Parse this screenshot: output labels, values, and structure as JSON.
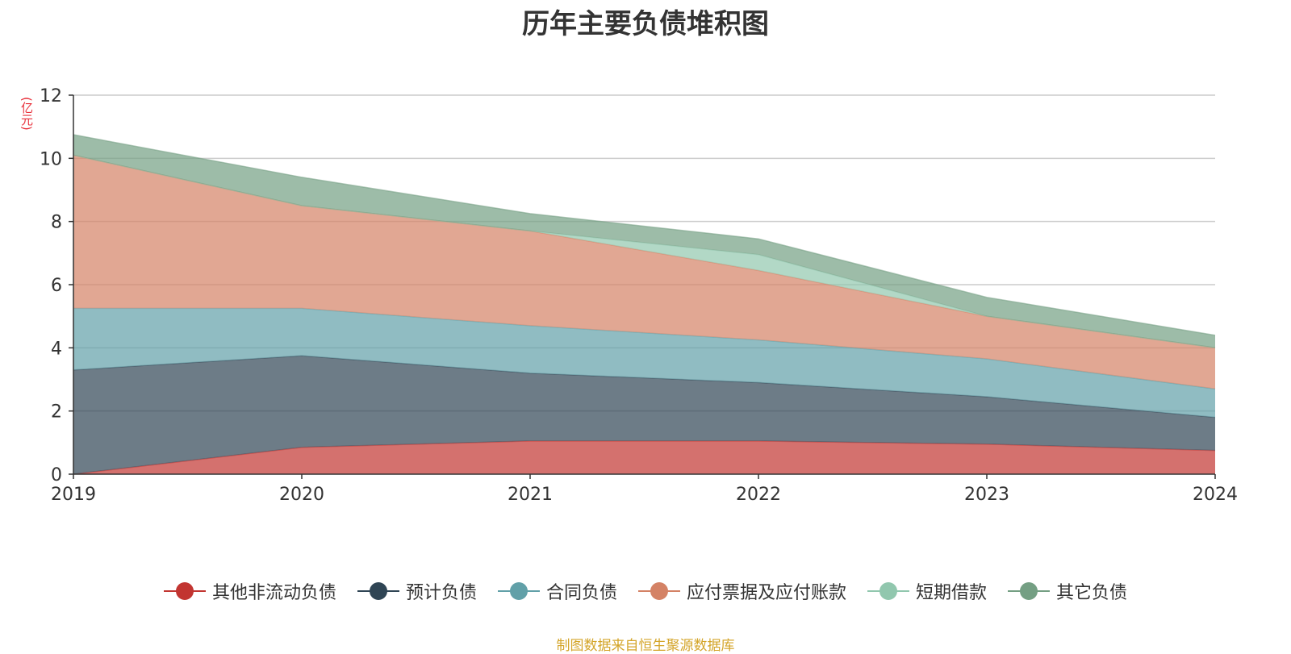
{
  "chart_data": {
    "type": "area",
    "stacked": true,
    "title": "历年主要负债堆积图",
    "unit": "(亿元)",
    "x": [
      "2019",
      "2020",
      "2021",
      "2022",
      "2023",
      "2024"
    ],
    "ylim": [
      0,
      12
    ],
    "yticks": [
      0,
      2,
      4,
      6,
      8,
      10,
      12
    ],
    "grid": true,
    "legend_position": "bottom",
    "series": [
      {
        "name": "其他非流动负债",
        "color": "#c23531",
        "values": [
          0.0,
          0.85,
          1.05,
          1.05,
          0.95,
          0.75
        ]
      },
      {
        "name": "预计负债",
        "color": "#2f4554",
        "values": [
          3.3,
          2.9,
          2.15,
          1.85,
          1.5,
          1.05
        ]
      },
      {
        "name": "合同负债",
        "color": "#61a0a8",
        "values": [
          1.95,
          1.5,
          1.5,
          1.35,
          1.2,
          0.9
        ]
      },
      {
        "name": "应付票据及应付账款",
        "color": "#d48265",
        "values": [
          4.85,
          3.25,
          3.0,
          2.2,
          1.35,
          1.3
        ]
      },
      {
        "name": "短期借款",
        "color": "#91c7ae",
        "values": [
          0.0,
          0.0,
          0.0,
          0.5,
          0.0,
          0.0
        ]
      },
      {
        "name": "其它负债",
        "color": "#749f83",
        "values": [
          0.65,
          0.9,
          0.55,
          0.5,
          0.6,
          0.4
        ]
      }
    ]
  },
  "footer": {
    "source": "制图数据来自恒生聚源数据库"
  }
}
